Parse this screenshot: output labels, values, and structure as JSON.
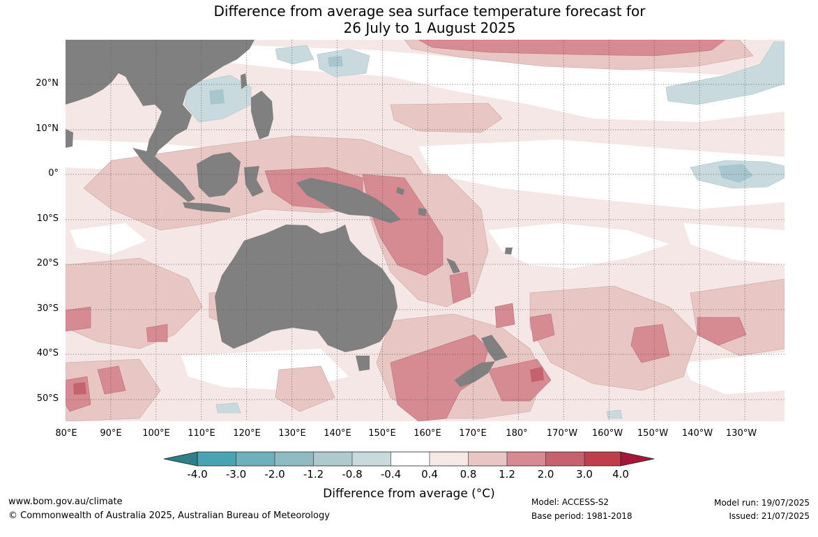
{
  "title": {
    "line1": "Difference from average sea surface temperature forecast for",
    "line2": "26 July to 1 August 2025"
  },
  "map": {
    "lat_labels": [
      "20°N",
      "10°N",
      "0°",
      "10°S",
      "20°S",
      "30°S",
      "40°S",
      "50°S"
    ],
    "lon_labels": [
      "80°E",
      "90°E",
      "100°E",
      "110°E",
      "120°E",
      "130°E",
      "140°E",
      "150°E",
      "160°E",
      "170°E",
      "180°",
      "170°W",
      "160°W",
      "150°W",
      "140°W",
      "130°W"
    ],
    "colors": {
      "land": "#808080",
      "ocean_neutral": "#ffffff",
      "grid": "#444444",
      "anomaly_0_4": "#f5e7e6",
      "anomaly_0_8": "#e8c6c3",
      "anomaly_1_2": "#d68a92",
      "anomaly_2_0": "#c4636d",
      "anomaly_neg_0_4": "#c9dade",
      "anomaly_neg_0_8": "#a8c6cd"
    }
  },
  "colorbar": {
    "tick_labels": [
      "-4.0",
      "-3.0",
      "-2.0",
      "-1.2",
      "-0.8",
      "-0.4",
      "0.4",
      "0.8",
      "1.2",
      "2.0",
      "3.0",
      "4.0"
    ],
    "colors": [
      "#2f7e88",
      "#4aa3b2",
      "#6eb0bc",
      "#8fbbc2",
      "#afc9ce",
      "#c9dadd",
      "#ffffff",
      "#f5e8e7",
      "#e8c6c3",
      "#d68a92",
      "#c4636d",
      "#bd3f4c",
      "#a4163a"
    ],
    "label": "Difference from average (°C)"
  },
  "footer": {
    "website": "www.bom.gov.au/climate",
    "copyright": "© Commonwealth of Australia 2025, Australian Bureau of Meteorology",
    "model": "Model: ACCESS-S2",
    "base_period": "Base period: 1981-2018",
    "model_run": "Model run: 19/07/2025",
    "issued": "Issued: 21/07/2025"
  }
}
